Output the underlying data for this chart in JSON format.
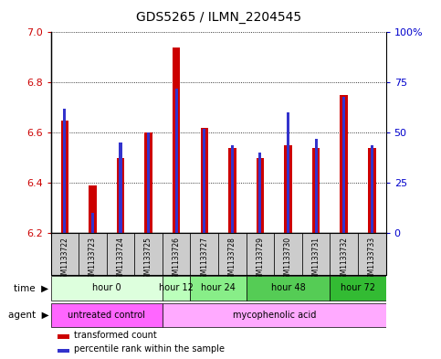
{
  "title": "GDS5265 / ILMN_2204545",
  "samples": [
    "GSM1133722",
    "GSM1133723",
    "GSM1133724",
    "GSM1133725",
    "GSM1133726",
    "GSM1133727",
    "GSM1133728",
    "GSM1133729",
    "GSM1133730",
    "GSM1133731",
    "GSM1133732",
    "GSM1133733"
  ],
  "transformed_count": [
    6.65,
    6.39,
    6.5,
    6.6,
    6.94,
    6.62,
    6.54,
    6.5,
    6.55,
    6.54,
    6.75,
    6.54
  ],
  "percentile_rank": [
    62,
    10,
    45,
    50,
    72,
    52,
    44,
    40,
    60,
    47,
    68,
    44
  ],
  "ylim_left": [
    6.2,
    7.0
  ],
  "ylim_right": [
    0,
    100
  ],
  "yticks_left": [
    6.2,
    6.4,
    6.6,
    6.8,
    7.0
  ],
  "yticks_right": [
    0,
    25,
    50,
    75,
    100
  ],
  "ytick_labels_right": [
    "0",
    "25",
    "50",
    "75",
    "100%"
  ],
  "bar_color_red": "#cc0000",
  "bar_color_blue": "#3333cc",
  "time_groups": [
    {
      "label": "hour 0",
      "start": 0,
      "end": 3,
      "color": "#ddffdd"
    },
    {
      "label": "hour 12",
      "start": 4,
      "end": 4,
      "color": "#bbffbb"
    },
    {
      "label": "hour 24",
      "start": 5,
      "end": 6,
      "color": "#88ee88"
    },
    {
      "label": "hour 48",
      "start": 7,
      "end": 9,
      "color": "#55cc55"
    },
    {
      "label": "hour 72",
      "start": 10,
      "end": 11,
      "color": "#33bb33"
    }
  ],
  "agent_groups": [
    {
      "label": "untreated control",
      "start": 0,
      "end": 3,
      "color": "#ff66ff"
    },
    {
      "label": "mycophenolic acid",
      "start": 4,
      "end": 11,
      "color": "#ffaaff"
    }
  ],
  "legend_red": "transformed count",
  "legend_blue": "percentile rank within the sample",
  "left_axis_color": "#cc0000",
  "right_axis_color": "#0000cc",
  "background_color": "#ffffff",
  "sample_bg_color": "#cccccc"
}
